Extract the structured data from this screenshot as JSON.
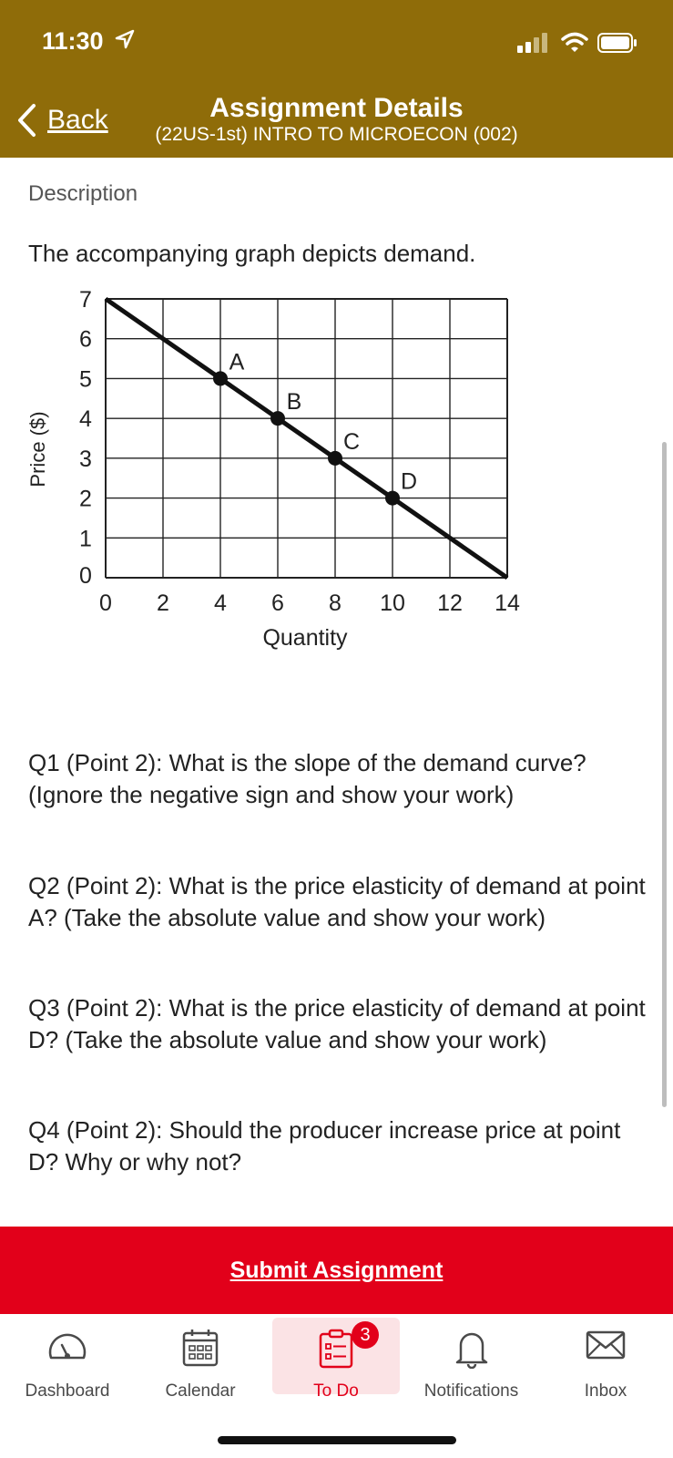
{
  "status": {
    "time": "11:30"
  },
  "header": {
    "back_label": "Back",
    "title": "Assignment Details",
    "subtitle": "(22US-1st) INTRO TO MICROECON (002)"
  },
  "description": {
    "label": "Description",
    "intro": "The accompanying graph depicts demand.",
    "questions": [
      "Q1 (Point 2): What is the slope of the demand curve? (Ignore the negative sign and show your work)",
      "Q2 (Point 2): What is the price elasticity of demand at point A? (Take the absolute value and show your work)",
      "Q3 (Point 2): What is the price elasticity of demand at point D? (Take the absolute value and show your work)",
      "Q4 (Point 2): Should the producer increase price at point D? Why or why not?"
    ]
  },
  "chart_data": {
    "type": "line",
    "xlabel": "Quantity",
    "ylabel": "Price ($)",
    "xlim": [
      0,
      14
    ],
    "ylim": [
      0,
      7
    ],
    "x_ticks": [
      0,
      2,
      4,
      6,
      8,
      10,
      12,
      14
    ],
    "y_ticks": [
      0,
      1,
      2,
      3,
      4,
      5,
      6,
      7
    ],
    "grid": true,
    "series": [
      {
        "x": [
          0,
          14
        ],
        "y": [
          7,
          0
        ]
      }
    ],
    "points": [
      {
        "label": "A",
        "x": 4,
        "y": 5
      },
      {
        "label": "B",
        "x": 6,
        "y": 4
      },
      {
        "label": "C",
        "x": 8,
        "y": 3
      },
      {
        "label": "D",
        "x": 10,
        "y": 2
      }
    ]
  },
  "submit_label": "Submit Assignment",
  "tabs": [
    {
      "label": "Dashboard",
      "icon": "dashboard-icon"
    },
    {
      "label": "Calendar",
      "icon": "calendar-icon"
    },
    {
      "label": "To Do",
      "icon": "todo-icon",
      "badge": "3",
      "active": true
    },
    {
      "label": "Notifications",
      "icon": "bell-icon"
    },
    {
      "label": "Inbox",
      "icon": "mail-icon"
    }
  ],
  "colors": {
    "header": "#8f6c09",
    "submit": "#e2001a",
    "todo_active_bg": "#fbe3e5"
  }
}
